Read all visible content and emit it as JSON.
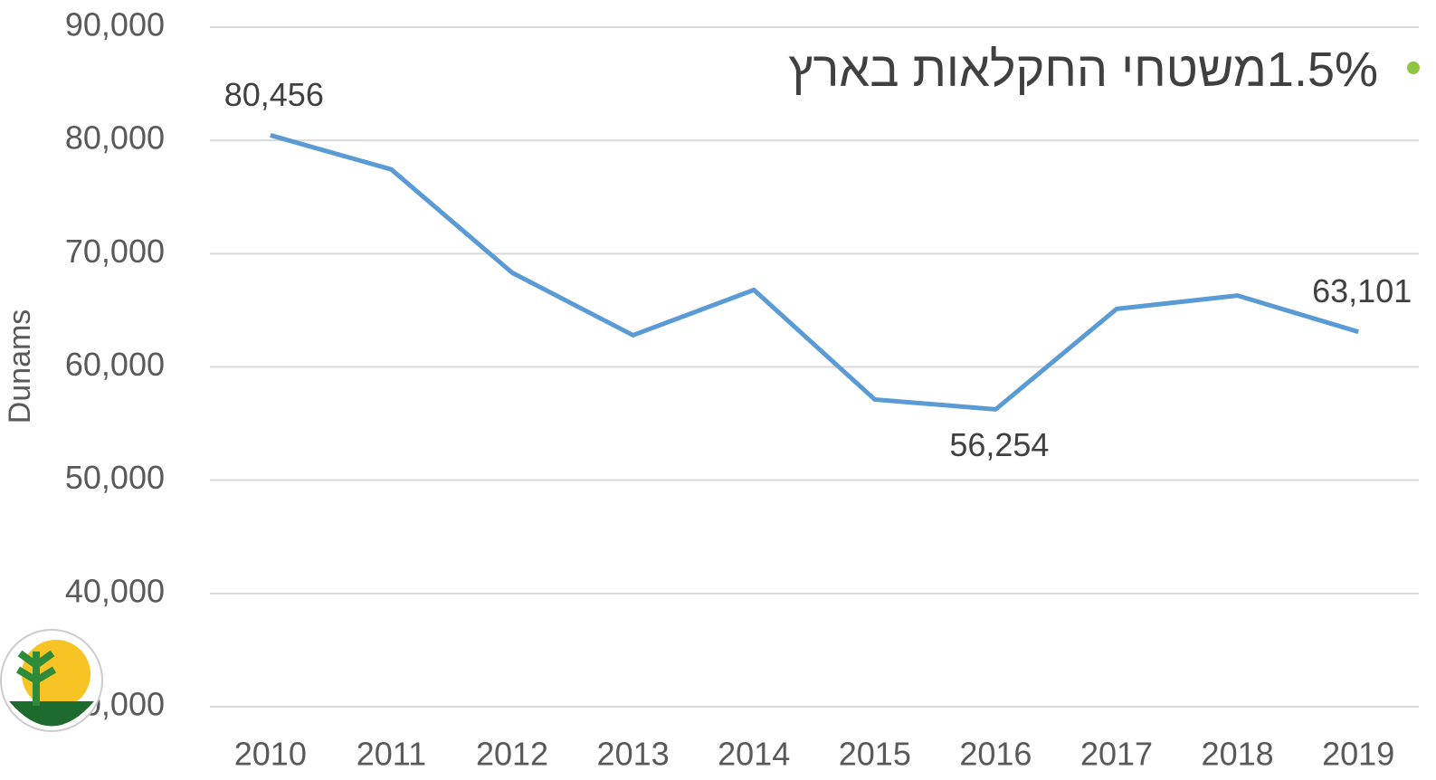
{
  "chart_data": {
    "type": "line",
    "annotation": "1.5%משטחי החקלאות בארץ",
    "y_label": "Dunams",
    "categories": [
      "2010",
      "2011",
      "2012",
      "2013",
      "2014",
      "2015",
      "2016",
      "2017",
      "2018",
      "2019"
    ],
    "series": [
      {
        "name": "Dunams",
        "color": "#5b9bd5",
        "values": [
          80456,
          77440,
          68320,
          62800,
          66800,
          57120,
          56254,
          65120,
          66300,
          63101
        ],
        "value_labels": [
          "80,456",
          null,
          null,
          null,
          null,
          null,
          "56,254",
          null,
          null,
          "63,101"
        ]
      }
    ],
    "ylim": [
      30000,
      90000
    ],
    "yticks": [
      {
        "value": 30000,
        "label": "30,000"
      },
      {
        "value": 40000,
        "label": "40,000"
      },
      {
        "value": 50000,
        "label": "50,000"
      },
      {
        "value": 60000,
        "label": "60,000"
      },
      {
        "value": 70000,
        "label": "70,000"
      },
      {
        "value": 80000,
        "label": "80,000"
      },
      {
        "value": 90000,
        "label": "90,000"
      }
    ],
    "grid": true
  }
}
